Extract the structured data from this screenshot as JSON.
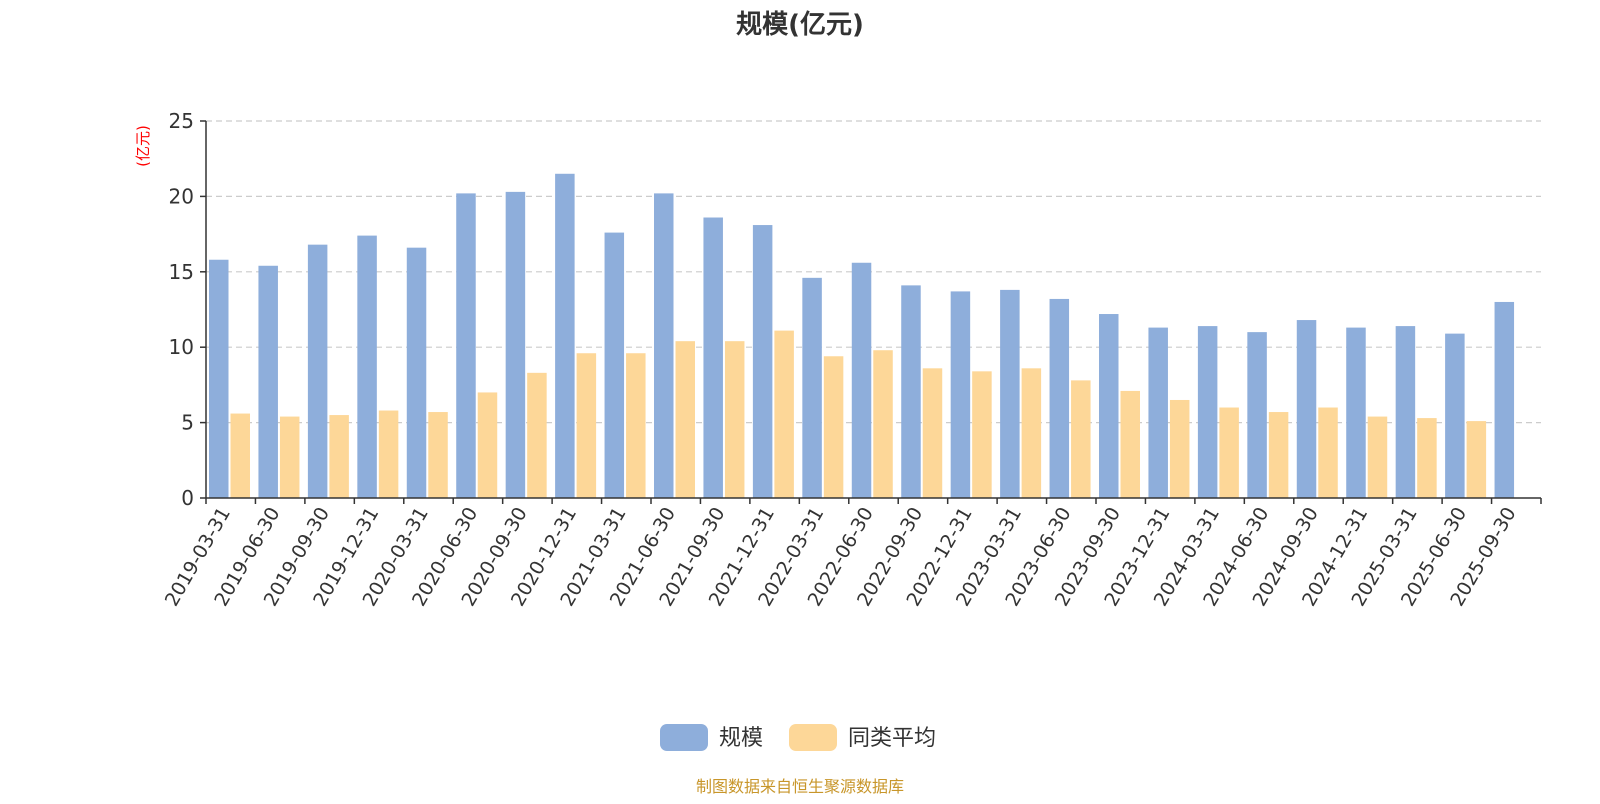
{
  "colors": {
    "series": [
      "#8eaedb",
      "#fdd798"
    ],
    "grid": "#cccccc",
    "axis": "#333333",
    "unit": "#ff0000",
    "source": "#c8962a"
  },
  "source_note": "制图数据来自恒生聚源数据库",
  "chart_data": {
    "type": "bar",
    "title": "规模(亿元)",
    "ylabel": "(亿元)",
    "xlabel": "",
    "ylim": [
      0,
      25
    ],
    "yticks": [
      0,
      5,
      10,
      15,
      20,
      25
    ],
    "grid": true,
    "legend_position": "bottom-center",
    "categories": [
      "2019-03-31",
      "2019-06-30",
      "2019-09-30",
      "2019-12-31",
      "2020-03-31",
      "2020-06-30",
      "2020-09-30",
      "2020-12-31",
      "2021-03-31",
      "2021-06-30",
      "2021-09-30",
      "2021-12-31",
      "2022-03-31",
      "2022-06-30",
      "2022-09-30",
      "2022-12-31",
      "2023-03-31",
      "2023-06-30",
      "2023-09-30",
      "2023-12-31",
      "2024-03-31",
      "2024-06-30",
      "2024-09-30",
      "2024-12-31",
      "2025-03-31",
      "2025-06-30",
      "2025-09-30"
    ],
    "series": [
      {
        "name": "规模",
        "values": [
          15.8,
          15.4,
          16.8,
          17.4,
          16.6,
          20.2,
          20.3,
          21.5,
          17.6,
          20.2,
          18.6,
          18.1,
          14.6,
          15.6,
          14.1,
          13.7,
          13.8,
          13.2,
          12.2,
          11.3,
          11.4,
          11.0,
          11.8,
          11.3,
          11.4,
          10.9,
          13.0
        ]
      },
      {
        "name": "同类平均",
        "values": [
          5.6,
          5.4,
          5.5,
          5.8,
          5.7,
          7.0,
          8.3,
          9.6,
          9.6,
          10.4,
          10.4,
          11.1,
          9.4,
          9.8,
          8.6,
          8.4,
          8.6,
          7.8,
          7.1,
          6.5,
          6.0,
          5.7,
          6.0,
          5.4,
          5.3,
          5.1,
          null
        ]
      }
    ]
  }
}
